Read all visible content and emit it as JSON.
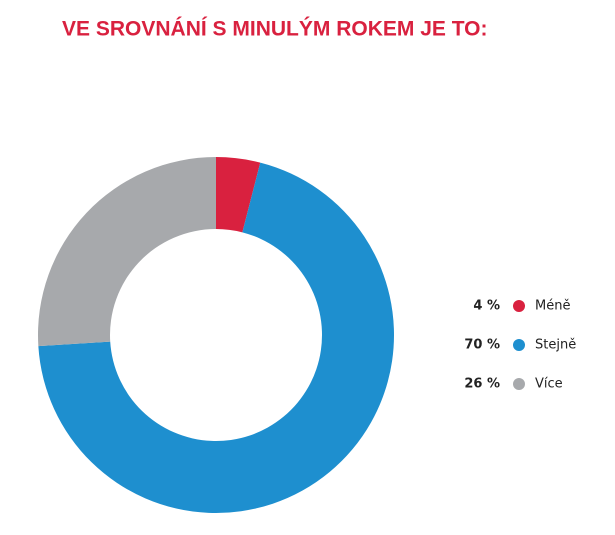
{
  "chart_data": {
    "type": "pie",
    "title": "VE SROVNÁNÍ S MINULÝM ROKEM JE TO:",
    "categories": [
      "Méně",
      "Stejně",
      "Více"
    ],
    "values": [
      4,
      70,
      26
    ],
    "value_labels": [
      "4 %",
      "70 %",
      "26 %"
    ],
    "colors": [
      "#d9213f",
      "#1e8fcf",
      "#a7a9ac"
    ],
    "donut": true
  }
}
